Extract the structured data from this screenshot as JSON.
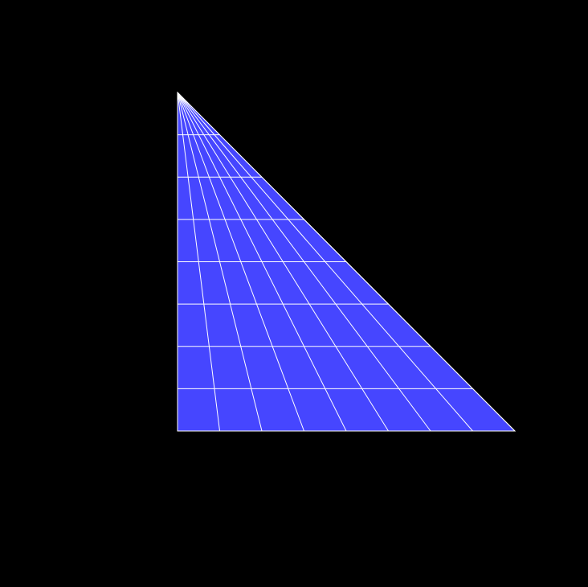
{
  "scene": {
    "title": "",
    "shape": "right-triangle-mesh",
    "radial_divisions": 8,
    "ring_divisions": 8,
    "ray_fractions": [
      0,
      0.125,
      0.25,
      0.375,
      0.5,
      0.625,
      0.75,
      0.875,
      1
    ],
    "ring_fractions": [
      0.125,
      0.25,
      0.375,
      0.5,
      0.625,
      0.75,
      0.875,
      1
    ]
  },
  "colors": {
    "background": "#000000",
    "fill": "#4646ff",
    "grid_line": "#ffffff",
    "outline": "#ffffff"
  }
}
